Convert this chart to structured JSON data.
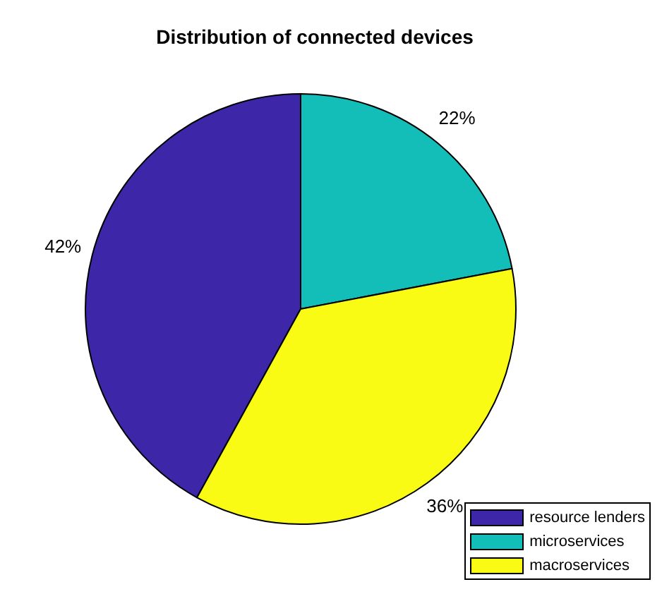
{
  "chart_data": {
    "type": "pie",
    "title": "Distribution of connected devices",
    "categories": [
      "resource lenders",
      "microservices",
      "macroservices"
    ],
    "values": [
      42,
      22,
      36
    ],
    "value_labels": [
      "42%",
      "22%",
      "36%"
    ],
    "colors": [
      "#3e26a8",
      "#13beb8",
      "#f9fb15"
    ],
    "legend": "bottom right"
  }
}
